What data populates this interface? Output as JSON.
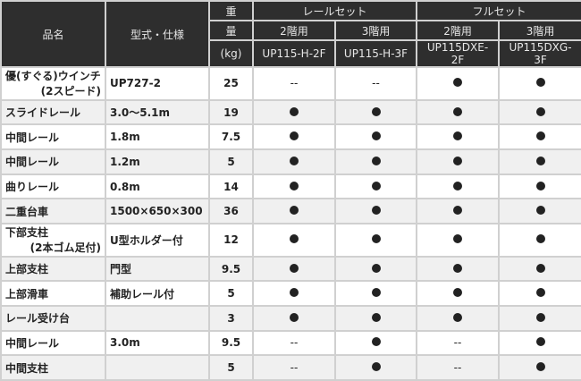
{
  "header": {
    "name": "品名",
    "spec": "型式・仕様",
    "weight": [
      "重",
      "量",
      "(kg)"
    ],
    "groups": [
      "レールセット",
      "フルセット"
    ],
    "floors": [
      "2階用",
      "3階用",
      "2階用",
      "3階用"
    ],
    "models": [
      "UP115-H-2F",
      "UP115-H-3F",
      "UP115DXE-2F",
      "UP115DXG-3F"
    ]
  },
  "rows": [
    {
      "name": "優(すぐる)ウインチ",
      "name2": "(2スピード)",
      "spec": "UP727-2",
      "weight": "25",
      "marks": [
        "--",
        "--",
        "●",
        "●"
      ]
    },
    {
      "name": "スライドレール",
      "spec": "3.0～5.1m",
      "weight": "19",
      "marks": [
        "●",
        "●",
        "●",
        "●"
      ]
    },
    {
      "name": "中間レール",
      "spec": "1.8m",
      "weight": "7.5",
      "marks": [
        "●",
        "●",
        "●",
        "●"
      ]
    },
    {
      "name": "中間レール",
      "spec": "1.2m",
      "weight": "5",
      "marks": [
        "●",
        "●",
        "●",
        "●"
      ]
    },
    {
      "name": "曲りレール",
      "spec": "0.8m",
      "weight": "14",
      "marks": [
        "●",
        "●",
        "●",
        "●"
      ]
    },
    {
      "name": "二重台車",
      "spec": "1500×650×300",
      "weight": "36",
      "marks": [
        "●",
        "●",
        "●",
        "●"
      ]
    },
    {
      "name": "下部支柱",
      "name2": "(2本ゴム足付)",
      "spec": "U型ホルダー付",
      "weight": "12",
      "marks": [
        "●",
        "●",
        "●",
        "●"
      ]
    },
    {
      "name": "上部支柱",
      "spec": "門型",
      "weight": "9.5",
      "marks": [
        "●",
        "●",
        "●",
        "●"
      ]
    },
    {
      "name": "上部滑車",
      "spec": "補助レール付",
      "weight": "5",
      "marks": [
        "●",
        "●",
        "●",
        "●"
      ]
    },
    {
      "name": "レール受け台",
      "spec": "",
      "weight": "3",
      "marks": [
        "●",
        "●",
        "●",
        "●"
      ]
    },
    {
      "name": "中間レール",
      "spec": "3.0m",
      "weight": "9.5",
      "marks": [
        "--",
        "●",
        "--",
        "●"
      ]
    },
    {
      "name": "中間支柱",
      "spec": "",
      "weight": "5",
      "marks": [
        "--",
        "●",
        "--",
        "●"
      ]
    }
  ]
}
